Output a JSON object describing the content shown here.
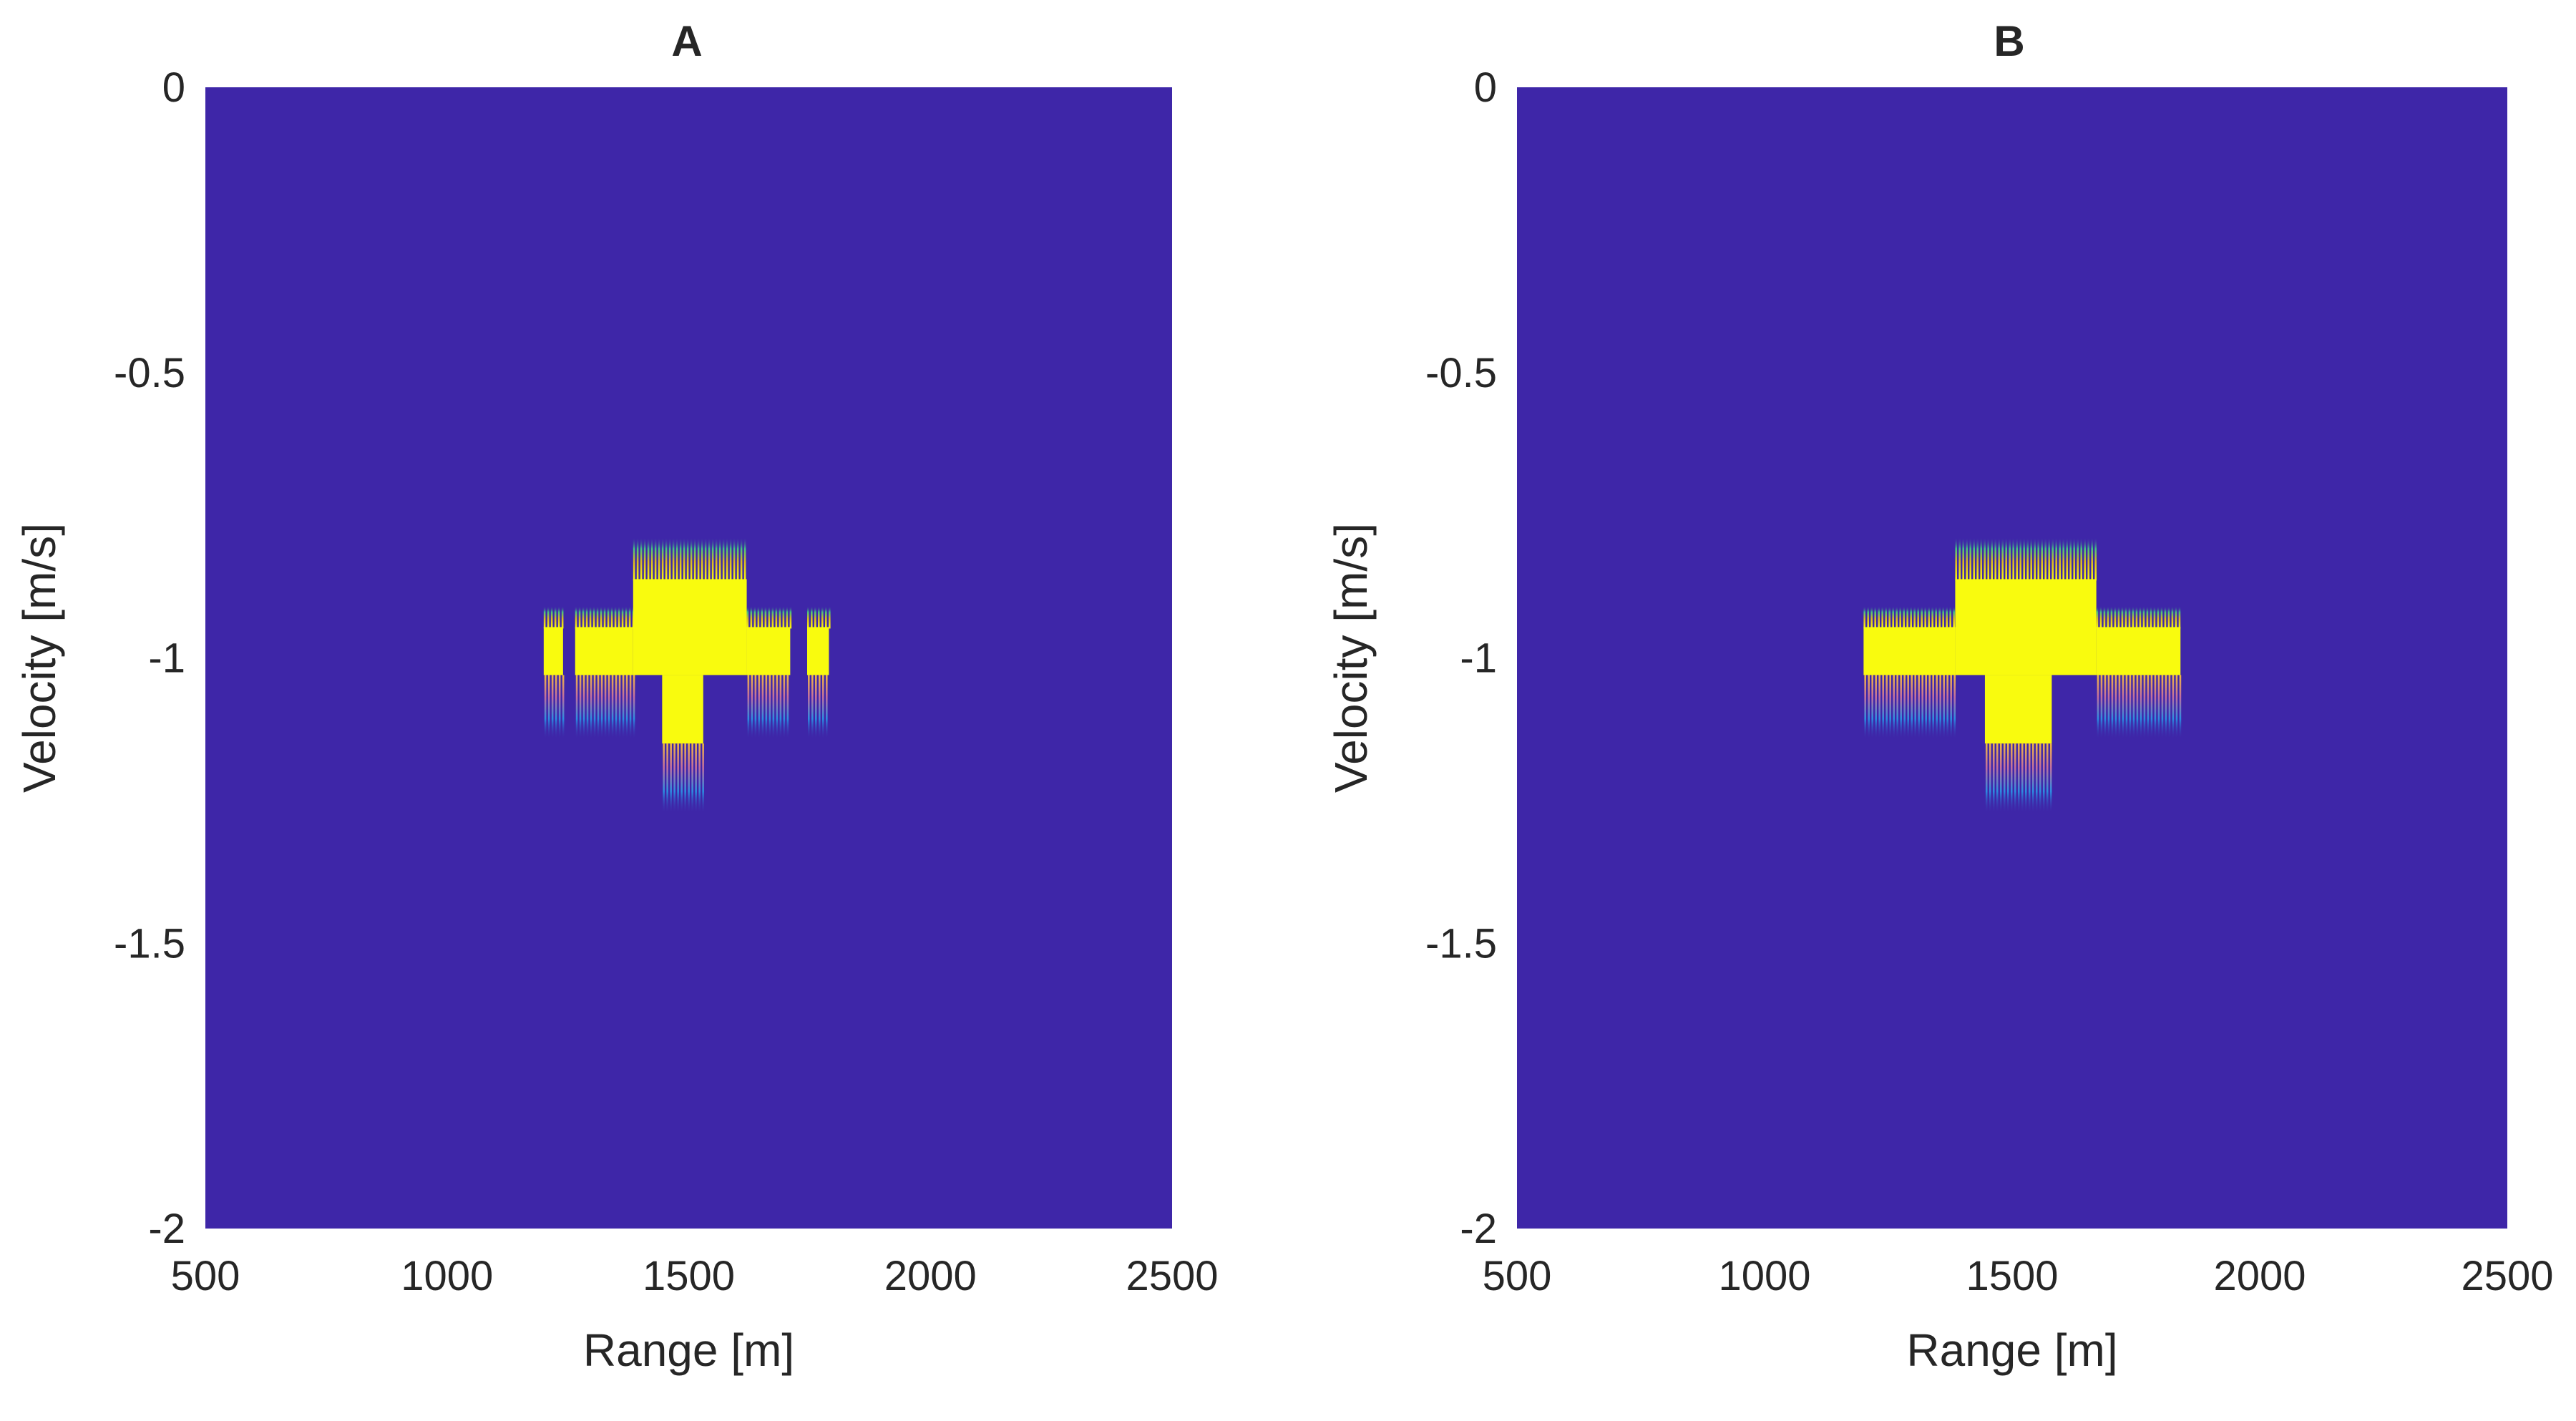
{
  "chart_data": [
    {
      "type": "heatmap",
      "title": "A",
      "xlabel": "Range [m]",
      "ylabel": "Velocity [m/s]",
      "xlim": [
        500,
        2500
      ],
      "ylim": [
        -2,
        0
      ],
      "xticks": [
        500,
        1000,
        1500,
        2000,
        2500
      ],
      "xticklabels": [
        "500",
        "1000",
        "1500",
        "2000",
        "2500"
      ],
      "yticks": [
        0,
        -0.5,
        -1,
        -1.5,
        -2
      ],
      "yticklabels": [
        "0",
        "-0.5",
        "-1",
        "-1.5",
        "-2"
      ],
      "background_color": "#3e26a8",
      "high_color": "#f9fb0e",
      "regions": [
        {
          "name": "small-left-block",
          "x": [
            1200,
            1240
          ],
          "y_top": -0.91,
          "y_solid": -1.03,
          "y_tail": -1.14
        },
        {
          "name": "left-block",
          "x": [
            1265,
            1385
          ],
          "y_top": -0.91,
          "y_solid": -1.03,
          "y_tail": -1.14
        },
        {
          "name": "upper-center-block",
          "x": [
            1385,
            1620
          ],
          "y_top": -0.79,
          "y_solid": -1.03,
          "y_tail": -1.03
        },
        {
          "name": "right-block",
          "x": [
            1620,
            1710
          ],
          "y_top": -0.91,
          "y_solid": -1.03,
          "y_tail": -1.14
        },
        {
          "name": "small-right-block",
          "x": [
            1745,
            1790
          ],
          "y_top": -0.91,
          "y_solid": -1.03,
          "y_tail": -1.14
        },
        {
          "name": "lower-stem-block",
          "x": [
            1445,
            1530
          ],
          "y_top": -1.03,
          "y_solid": -1.15,
          "y_tail": -1.27
        }
      ]
    },
    {
      "type": "heatmap",
      "title": "B",
      "xlabel": "Range [m]",
      "ylabel": "Velocity [m/s]",
      "xlim": [
        500,
        2500
      ],
      "ylim": [
        -2,
        0
      ],
      "xticks": [
        500,
        1000,
        1500,
        2000,
        2500
      ],
      "xticklabels": [
        "500",
        "1000",
        "1500",
        "2000",
        "2500"
      ],
      "yticks": [
        0,
        -0.5,
        -1,
        -1.5,
        -2
      ],
      "yticklabels": [
        "0",
        "-0.5",
        "-1",
        "-1.5",
        "-2"
      ],
      "background_color": "#3e26a8",
      "high_color": "#f9fb0e",
      "regions": [
        {
          "name": "left-block",
          "x": [
            1200,
            1385
          ],
          "y_top": -0.91,
          "y_solid": -1.03,
          "y_tail": -1.14
        },
        {
          "name": "upper-center-block",
          "x": [
            1385,
            1670
          ],
          "y_top": -0.79,
          "y_solid": -1.03,
          "y_tail": -1.03
        },
        {
          "name": "right-block",
          "x": [
            1670,
            1840
          ],
          "y_top": -0.91,
          "y_solid": -1.03,
          "y_tail": -1.14
        },
        {
          "name": "lower-stem-block",
          "x": [
            1445,
            1580
          ],
          "y_top": -1.03,
          "y_solid": -1.15,
          "y_tail": -1.27
        }
      ]
    }
  ]
}
